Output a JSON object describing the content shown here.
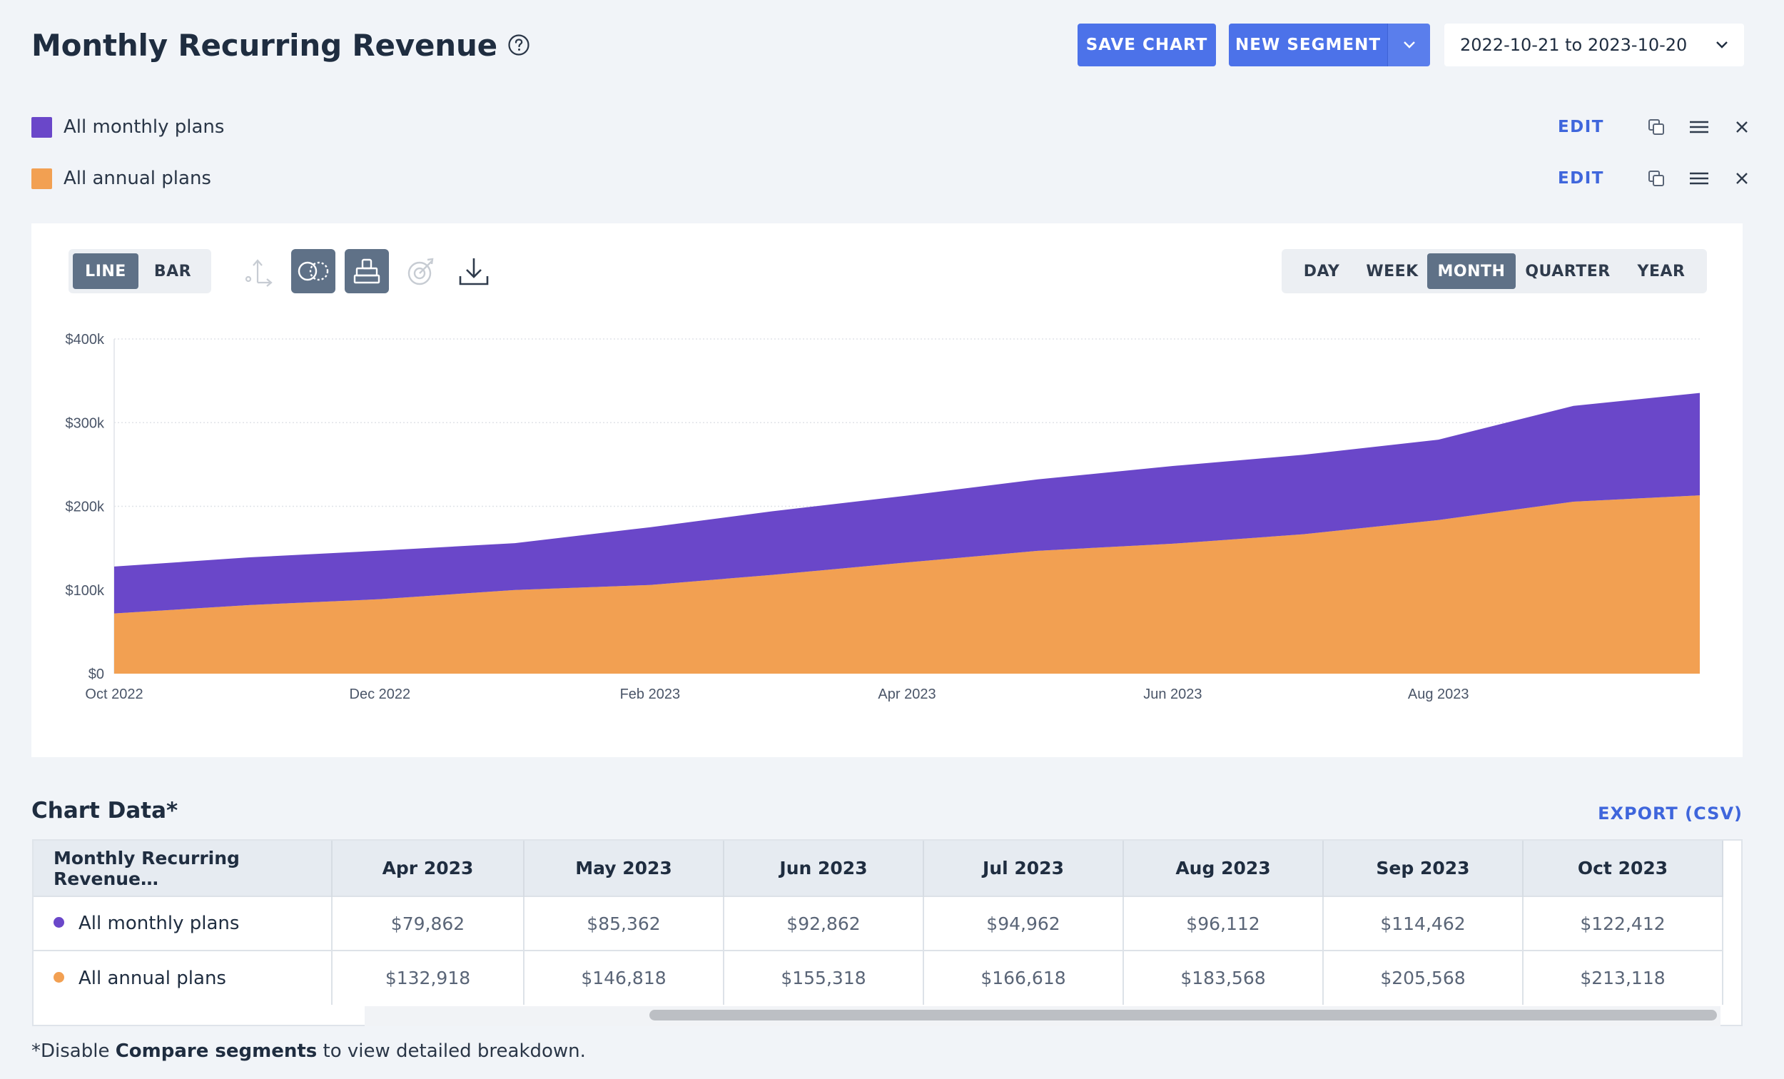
{
  "header": {
    "title": "Monthly Recurring Revenue",
    "help_icon": "question-circle-icon",
    "save_label": "SAVE CHART",
    "new_segment_label": "NEW SEGMENT",
    "date_range": "2022-10-21 to 2023-10-20"
  },
  "segments": [
    {
      "label": "All monthly plans",
      "color": "#6a47c9",
      "edit": "EDIT"
    },
    {
      "label": "All annual plans",
      "color": "#f2a052",
      "edit": "EDIT"
    }
  ],
  "toolbar": {
    "chart_types": [
      "LINE",
      "BAR"
    ],
    "active_chart_type": "LINE",
    "intervals": [
      "DAY",
      "WEEK",
      "MONTH",
      "QUARTER",
      "YEAR"
    ],
    "active_interval": "MONTH",
    "icons": [
      "axis-icon",
      "compare-segments-icon",
      "stack-icon",
      "goal-icon",
      "download-icon"
    ]
  },
  "chart_data": {
    "type": "area",
    "stacked": true,
    "x": [
      "2022-10-21",
      "2022-11-21",
      "2022-12-21",
      "2023-01-21",
      "2023-02-21",
      "2023-03-21",
      "2023-04-21",
      "2023-05-21",
      "2023-06-21",
      "2023-07-21",
      "2023-08-21",
      "2023-09-21",
      "2023-10-20"
    ],
    "x_tick_labels": [
      "Oct 2022",
      "Dec 2022",
      "Feb 2023",
      "Apr 2023",
      "Jun 2023",
      "Aug 2023"
    ],
    "y_tick_labels": [
      "$0",
      "$100k",
      "$200k",
      "$300k",
      "$400k"
    ],
    "ylim": [
      0,
      400000
    ],
    "series": [
      {
        "name": "All annual plans",
        "color": "#f2a052",
        "values": [
          72000,
          82000,
          89000,
          100000,
          106000,
          118000,
          132918,
          146818,
          155318,
          166618,
          183568,
          205568,
          213118
        ]
      },
      {
        "name": "All monthly plans",
        "color": "#6a47c9",
        "values": [
          56000,
          57000,
          58000,
          56000,
          69000,
          76000,
          79862,
          85362,
          92862,
          94962,
          96112,
          114462,
          122412
        ]
      }
    ],
    "grid": true,
    "legend": "top-left"
  },
  "table": {
    "title": "Chart Data*",
    "export_label": "EXPORT (CSV)",
    "first_header": "Monthly Recurring Revenue…",
    "columns": [
      "Apr 2023",
      "May 2023",
      "Jun 2023",
      "Jul 2023",
      "Aug 2023",
      "Sep 2023",
      "Oct 2023"
    ],
    "rows": [
      {
        "label": "All monthly plans",
        "color": "#6a47c9",
        "values": [
          "$79,862",
          "$85,362",
          "$92,862",
          "$94,962",
          "$96,112",
          "$114,462",
          "$122,412"
        ]
      },
      {
        "label": "All annual plans",
        "color": "#f2a052",
        "values": [
          "$132,918",
          "$146,818",
          "$155,318",
          "$166,618",
          "$183,568",
          "$205,568",
          "$213,118"
        ]
      }
    ]
  },
  "footnote": {
    "prefix": "*Disable ",
    "bold": "Compare segments",
    "suffix": " to view detailed breakdown."
  }
}
